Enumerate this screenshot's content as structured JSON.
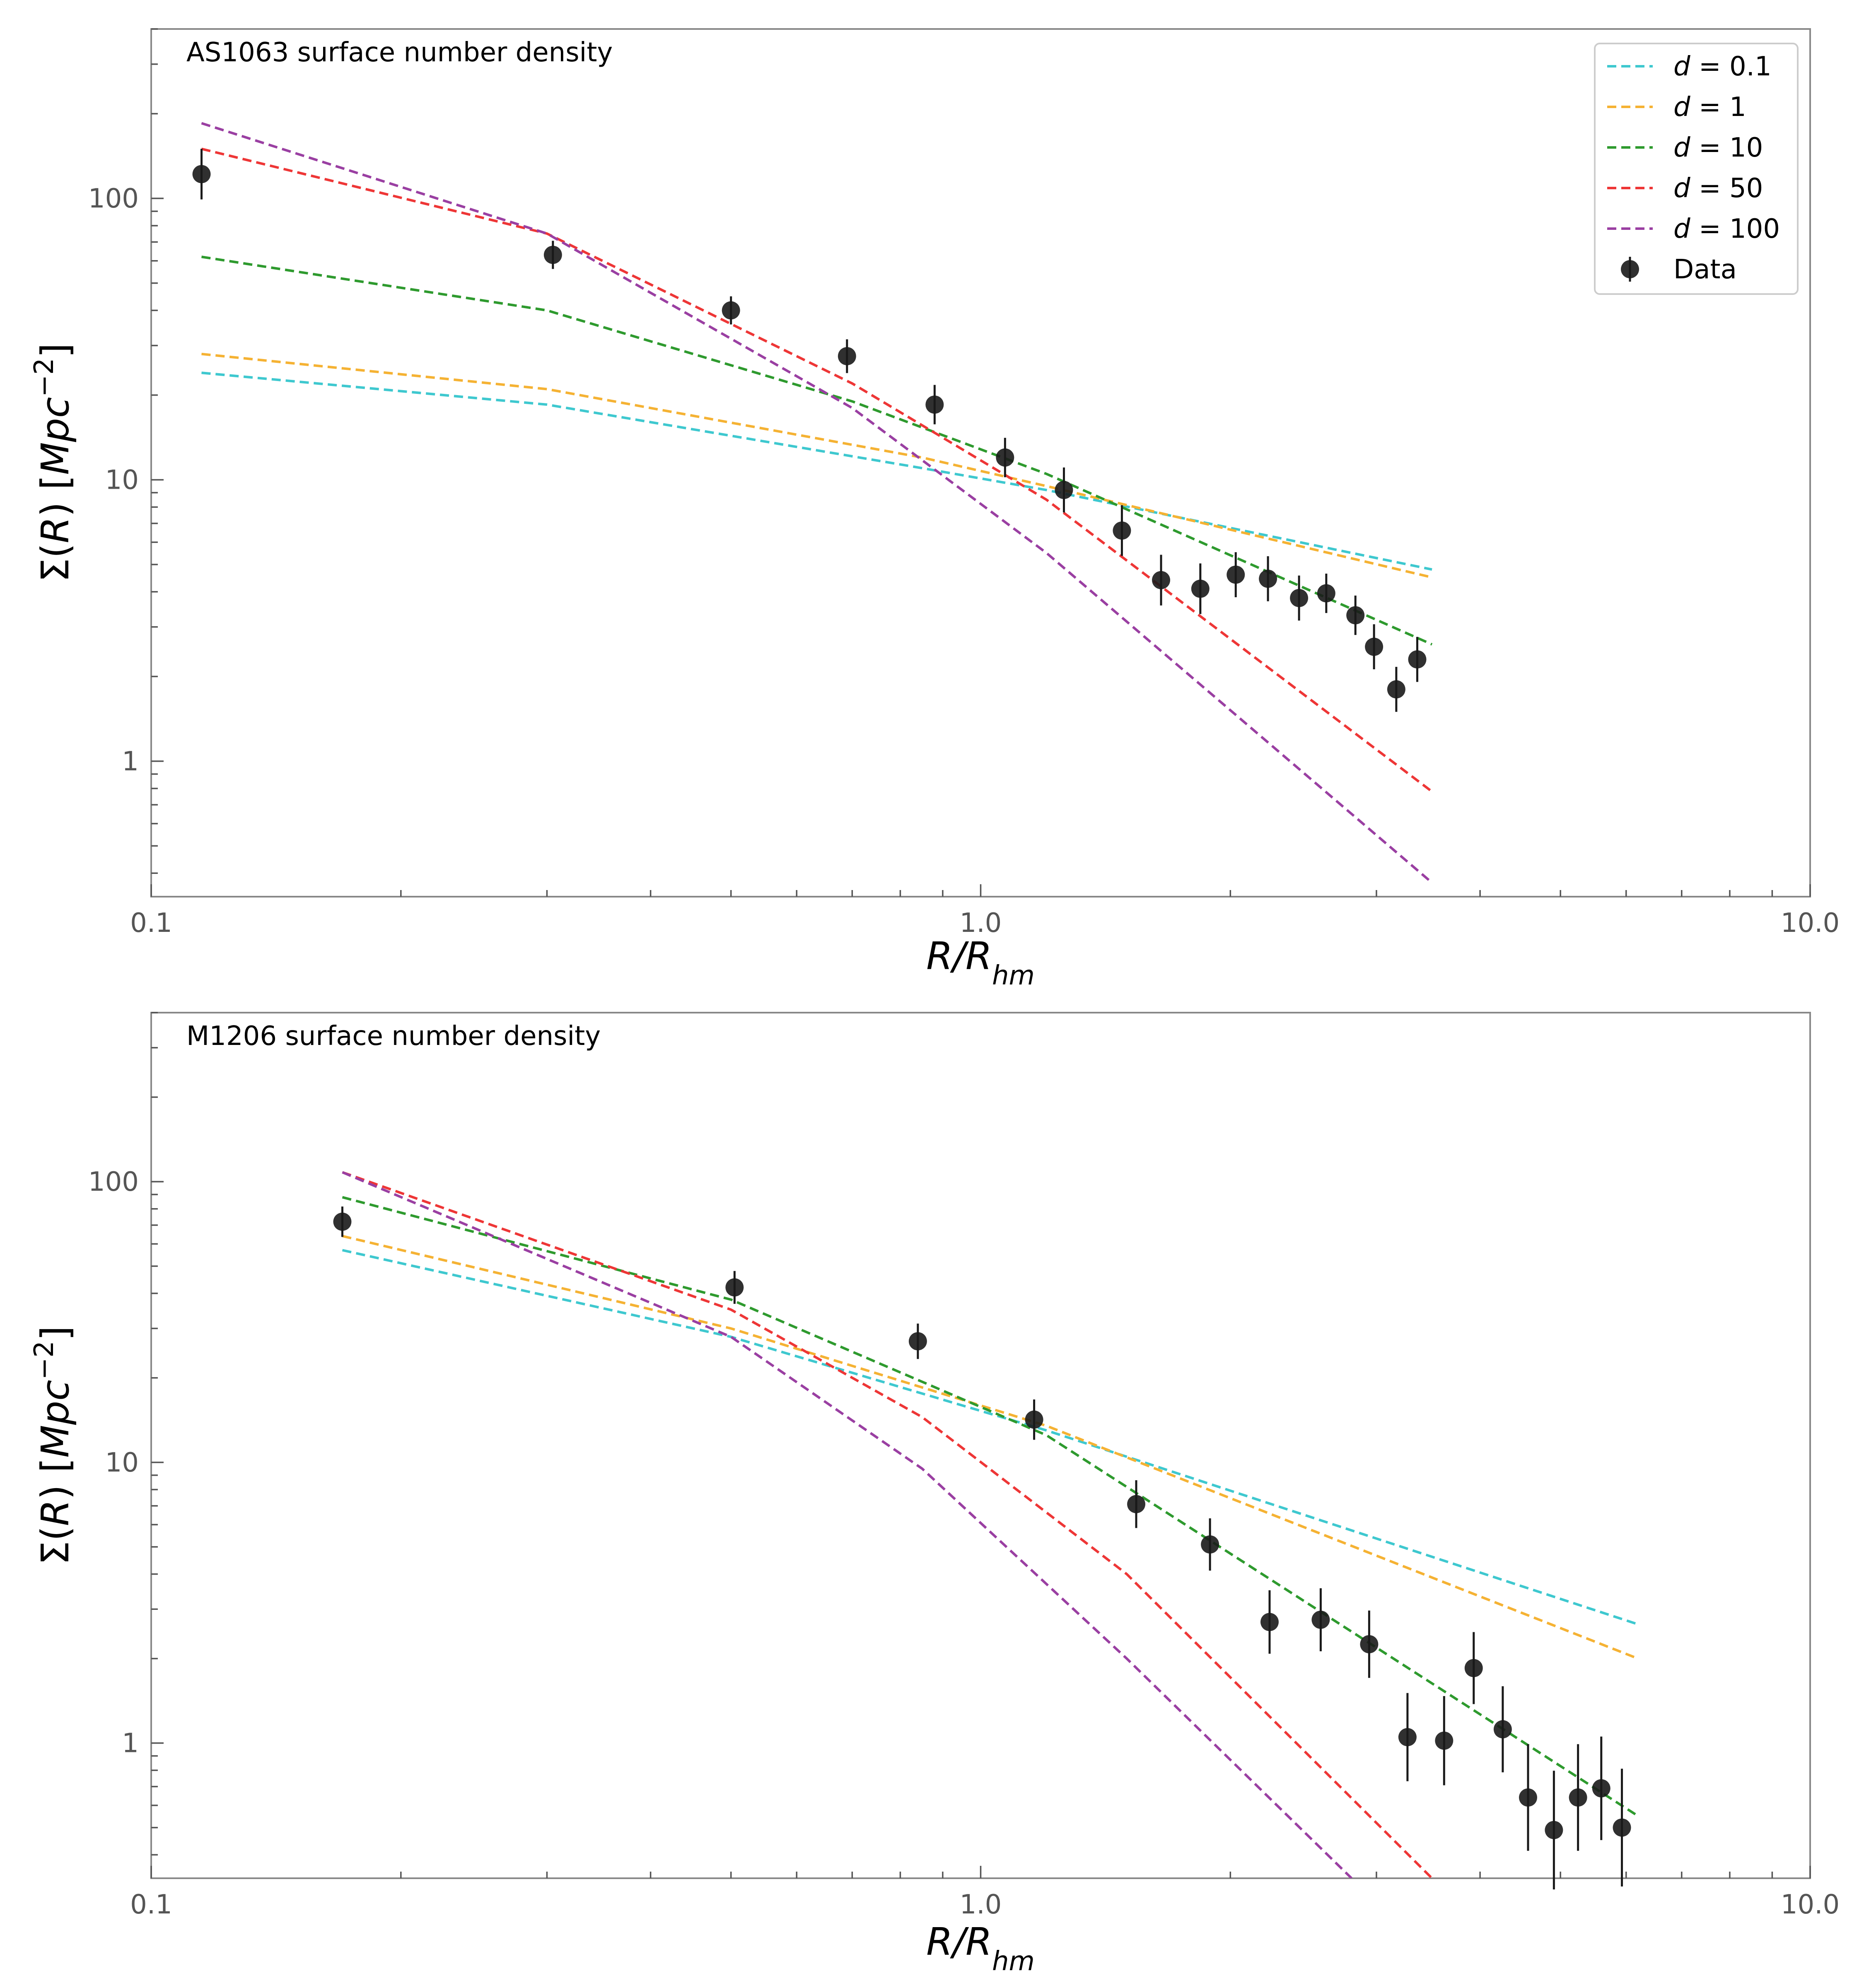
{
  "chart_data": [
    {
      "type": "line",
      "title": "AS1063 surface number density",
      "xlabel": "R/R_hm",
      "ylabel": "Σ(R) [Mpc⁻²]",
      "xscale": "log",
      "yscale": "log",
      "xlim": [
        0.1,
        10.0
      ],
      "ylim": [
        0.33,
        400
      ],
      "xticks": [
        0.1,
        1.0,
        10.0
      ],
      "xtick_labels": [
        "0.1",
        "1.0",
        "10.0"
      ],
      "yticks": [
        1,
        10,
        100
      ],
      "ytick_labels": [
        "1",
        "10",
        "100"
      ],
      "legend_position": "top-right",
      "series": [
        {
          "name": "d = 0.1",
          "color": "#3ec8cf",
          "x": [
            0.115,
            0.3,
            0.85,
            1.2,
            3.5
          ],
          "y": [
            24,
            18.5,
            11,
            9.2,
            4.8
          ]
        },
        {
          "name": "d = 1",
          "color": "#f5b233",
          "x": [
            0.115,
            0.3,
            0.85,
            1.2,
            3.5
          ],
          "y": [
            28,
            21,
            12,
            9.5,
            4.5
          ]
        },
        {
          "name": "d = 10",
          "color": "#2e9a2e",
          "x": [
            0.115,
            0.3,
            0.7,
            1.2,
            3.5
          ],
          "y": [
            62,
            40,
            19,
            10.5,
            2.6
          ]
        },
        {
          "name": "d = 50",
          "color": "#ee3636",
          "x": [
            0.115,
            0.3,
            0.7,
            1.2,
            3.5
          ],
          "y": [
            150,
            75,
            22,
            8.5,
            0.78
          ]
        },
        {
          "name": "d = 100",
          "color": "#9a3fa2",
          "x": [
            0.115,
            0.3,
            0.7,
            1.2,
            3.5
          ],
          "y": [
            185,
            75,
            18,
            5.5,
            0.37
          ]
        }
      ],
      "data_points": {
        "name": "Data",
        "x": [
          0.115,
          0.305,
          0.5,
          0.69,
          0.88,
          1.07,
          1.26,
          1.48,
          1.65,
          1.84,
          2.03,
          2.22,
          2.42,
          2.61,
          2.83,
          2.98,
          3.17,
          3.36
        ],
        "y": [
          122,
          63,
          40,
          27.5,
          18.5,
          12,
          9.2,
          6.6,
          4.4,
          4.1,
          4.6,
          4.45,
          3.8,
          3.95,
          3.3,
          2.55,
          1.8,
          2.3
        ],
        "yerr": [
          0.09,
          0.05,
          0.05,
          0.06,
          0.07,
          0.07,
          0.08,
          0.09,
          0.09,
          0.09,
          0.08,
          0.08,
          0.08,
          0.07,
          0.07,
          0.08,
          0.08,
          0.08
        ]
      }
    },
    {
      "type": "line",
      "title": "M1206 surface number density",
      "xlabel": "R/R_hm",
      "ylabel": "Σ(R) [Mpc⁻²]",
      "xscale": "log",
      "yscale": "log",
      "xlim": [
        0.1,
        10.0
      ],
      "ylim": [
        0.33,
        400
      ],
      "xticks": [
        0.1,
        1.0,
        10.0
      ],
      "xtick_labels": [
        "0.1",
        "1.0",
        "10.0"
      ],
      "yticks": [
        1,
        10,
        100
      ],
      "ytick_labels": [
        "1",
        "10",
        "100"
      ],
      "series": [
        {
          "name": "d = 0.1",
          "color": "#3ec8cf",
          "x": [
            0.17,
            0.5,
            1.2,
            6.2
          ],
          "y": [
            57,
            28,
            13,
            2.65
          ]
        },
        {
          "name": "d = 1",
          "color": "#f5b233",
          "x": [
            0.17,
            0.5,
            1.2,
            6.2
          ],
          "y": [
            64,
            30,
            13.5,
            2.0
          ]
        },
        {
          "name": "d = 10",
          "color": "#2e9a2e",
          "x": [
            0.17,
            0.5,
            1.2,
            6.2
          ],
          "y": [
            88,
            38,
            12.5,
            0.55
          ]
        },
        {
          "name": "d = 50",
          "color": "#ee3636",
          "x": [
            0.17,
            0.5,
            0.85,
            1.5,
            3.5
          ],
          "y": [
            108,
            35,
            14.5,
            4,
            0.33
          ]
        },
        {
          "name": "d = 100",
          "color": "#9a3fa2",
          "x": [
            0.17,
            0.5,
            0.85,
            1.5,
            2.8
          ],
          "y": [
            108,
            28,
            9.5,
            2,
            0.33
          ]
        }
      ],
      "data_points": {
        "name": "Data",
        "x": [
          0.17,
          0.505,
          0.84,
          1.16,
          1.54,
          1.89,
          2.23,
          2.57,
          2.94,
          3.27,
          3.62,
          3.93,
          4.26,
          4.57,
          4.91,
          5.25,
          5.6,
          5.93
        ],
        "y": [
          72,
          42,
          27,
          14.2,
          7.1,
          5.1,
          2.7,
          2.75,
          2.25,
          1.05,
          1.02,
          1.85,
          1.12,
          0.64,
          0.49,
          0.64,
          0.69,
          0.5
        ]
      }
    }
  ]
}
